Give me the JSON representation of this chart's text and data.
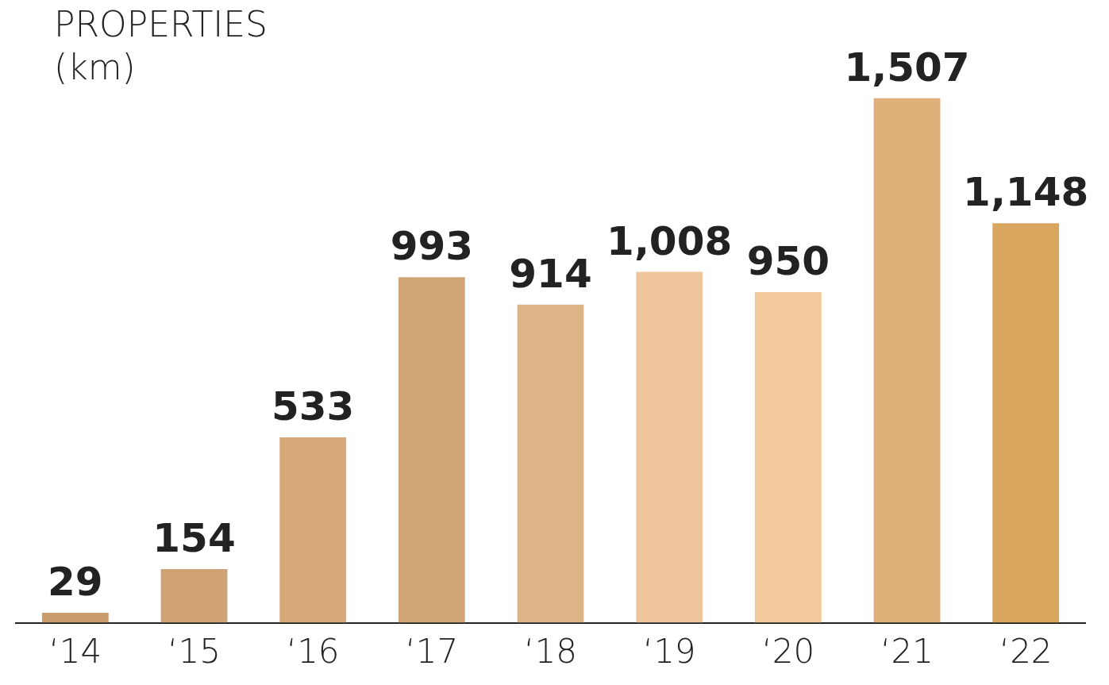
{
  "chart_data": {
    "type": "bar",
    "title": "PROPERTIES (km)",
    "categories": [
      "‘14",
      "‘15",
      "‘16",
      "‘17",
      "‘18",
      "‘19",
      "‘20",
      "‘21",
      "‘22"
    ],
    "values": [
      29,
      154,
      533,
      993,
      914,
      1008,
      950,
      1507,
      1148
    ],
    "colors": [
      "#c99c6c",
      "#cfa273",
      "#d4a878",
      "#d1a676",
      "#ddb486",
      "#eec49a",
      "#f2c99d",
      "#dfb07a",
      "#d9a660"
    ],
    "value_labels": [
      "29",
      "154",
      "533",
      "993",
      "914",
      "1,008",
      "950",
      "1,507",
      "1,148"
    ],
    "grid": false,
    "legend": false
  }
}
